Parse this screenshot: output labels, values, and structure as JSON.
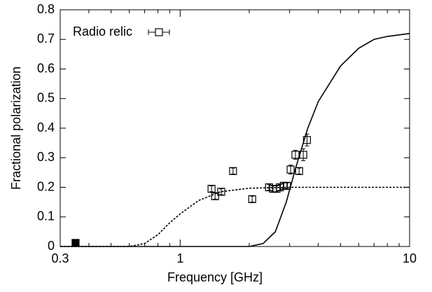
{
  "chart_data": {
    "type": "scatter",
    "xlabel": "Frequency [GHz]",
    "ylabel": "Fractional polarization",
    "xscale": "log",
    "xlim": [
      0.3,
      10
    ],
    "ylim": [
      0,
      0.8
    ],
    "xticks": [
      0.3,
      1,
      10
    ],
    "xminor_ticks": [
      0.4,
      0.5,
      0.6,
      0.7,
      0.8,
      0.9,
      2,
      3,
      4,
      5,
      6,
      7,
      8,
      9
    ],
    "yticks": [
      0,
      0.1,
      0.2,
      0.3,
      0.4,
      0.5,
      0.6,
      0.7,
      0.8
    ],
    "legend": "upper left",
    "series": [
      {
        "name": "Radio relic",
        "color": "#000000",
        "marker": "open-square",
        "x": [
          1.37,
          1.42,
          1.51,
          1.7,
          2.06,
          2.44,
          2.54,
          2.63,
          2.72,
          2.83,
          2.92,
          3.03,
          3.18,
          3.3,
          3.44,
          3.57
        ],
        "values": [
          0.195,
          0.17,
          0.185,
          0.255,
          0.16,
          0.2,
          0.195,
          0.195,
          0.2,
          0.205,
          0.205,
          0.26,
          0.31,
          0.255,
          0.31,
          0.36
        ],
        "errors": [
          0.01,
          0.01,
          0.01,
          0.01,
          0.01,
          0.01,
          0.01,
          0.01,
          0.01,
          0.01,
          0.01,
          0.015,
          0.015,
          0.01,
          0.02,
          0.02
        ]
      },
      {
        "color": "#000000",
        "marker": "filled-square",
        "x": [
          0.35
        ],
        "values": [
          0.012
        ]
      },
      {
        "color": "#000000",
        "line": "dotted",
        "x": [
          0.3,
          0.6,
          0.7,
          0.8,
          0.9,
          1.0,
          1.2,
          1.5,
          2,
          3,
          5,
          10
        ],
        "values": [
          0,
          0,
          0.01,
          0.04,
          0.08,
          0.11,
          0.155,
          0.185,
          0.197,
          0.2,
          0.2,
          0.2
        ]
      },
      {
        "color": "#000000",
        "line": "solid",
        "x": [
          0.3,
          2,
          2.3,
          2.6,
          2.9,
          3.2,
          3.6,
          4,
          5,
          6,
          7,
          8,
          10
        ],
        "values": [
          0,
          0,
          0.01,
          0.05,
          0.15,
          0.27,
          0.4,
          0.49,
          0.61,
          0.67,
          0.7,
          0.71,
          0.72
        ]
      }
    ]
  }
}
